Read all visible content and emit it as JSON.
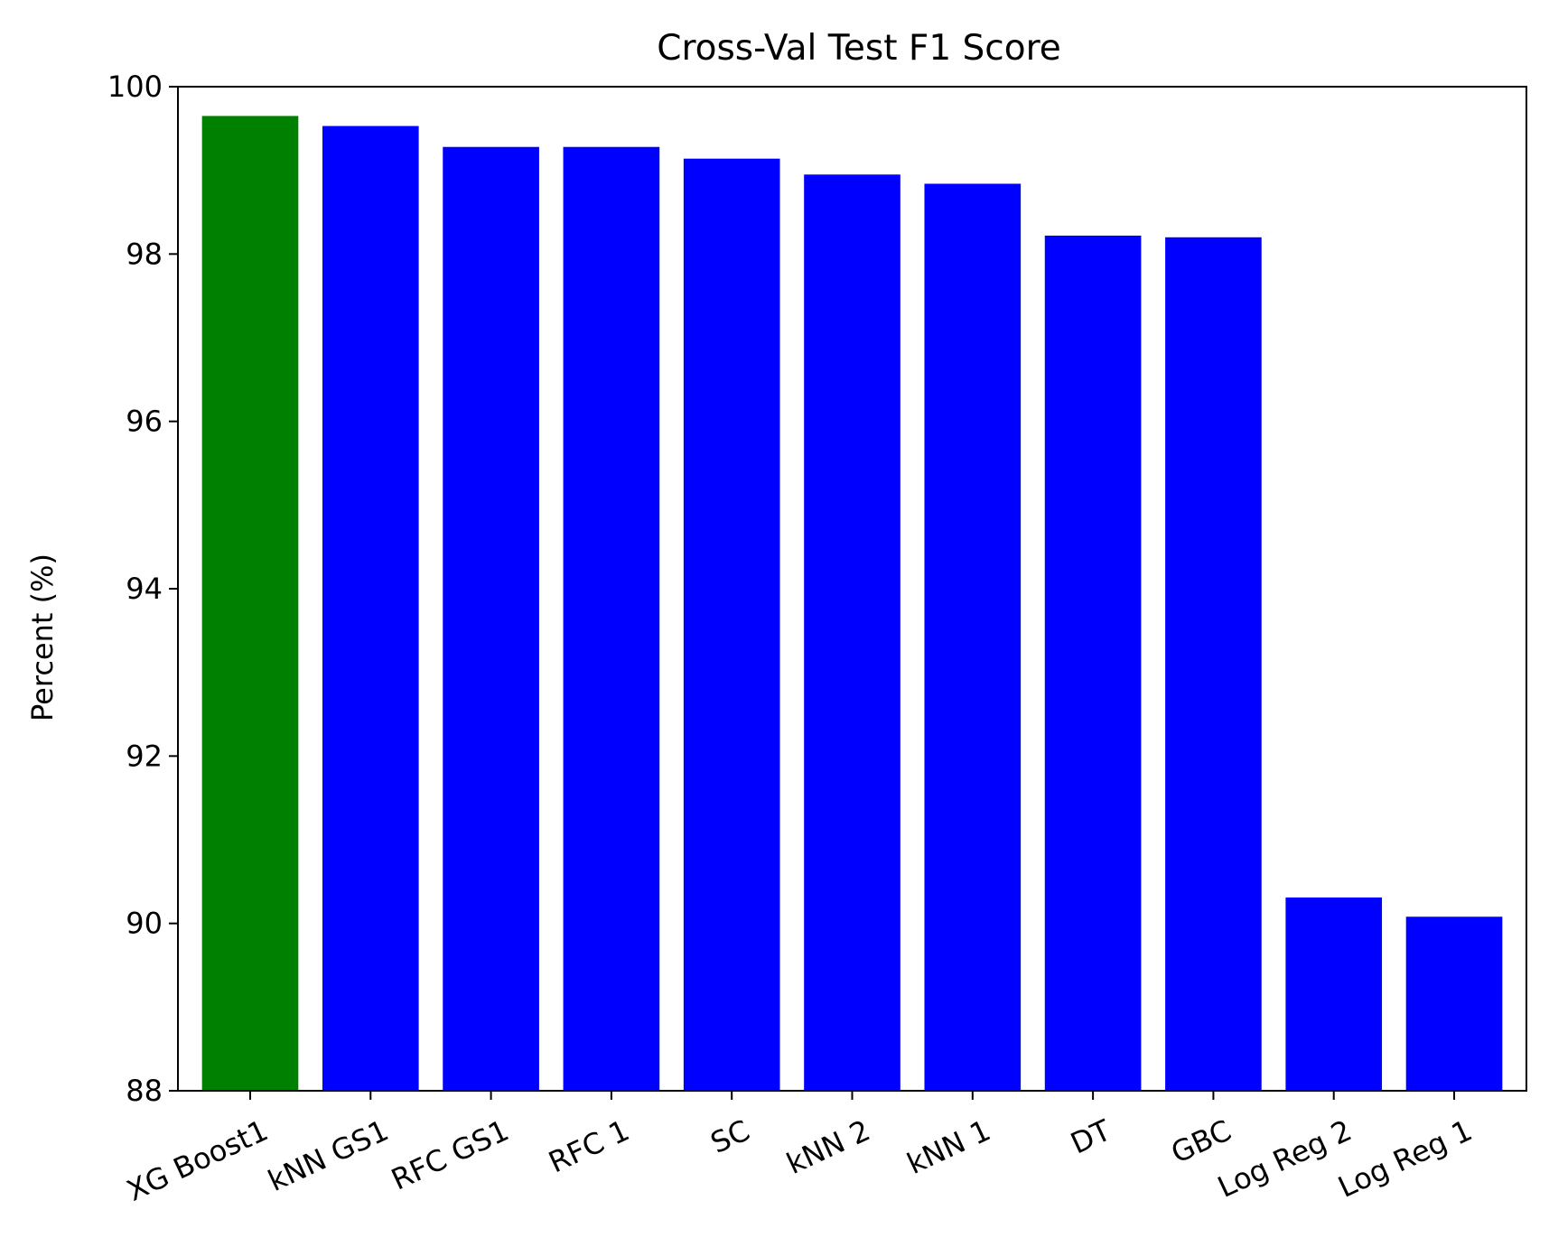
{
  "chart_data": {
    "type": "bar",
    "title": "Cross-Val Test F1 Score",
    "xlabel": "",
    "ylabel": "Percent (%)",
    "ylim": [
      88,
      100
    ],
    "yticks": [
      88,
      90,
      92,
      94,
      96,
      98,
      100
    ],
    "grid": false,
    "categories": [
      "XG Boost1",
      "kNN GS1",
      "RFC GS1",
      "RFC 1",
      "SC",
      "kNN 2",
      "kNN 1",
      "DT",
      "GBC",
      "Log Reg 2",
      "Log Reg 1"
    ],
    "values": [
      99.65,
      99.53,
      99.28,
      99.28,
      99.14,
      98.95,
      98.84,
      98.22,
      98.2,
      90.31,
      90.08
    ],
    "colors": [
      "#008000",
      "#0000ff",
      "#0000ff",
      "#0000ff",
      "#0000ff",
      "#0000ff",
      "#0000ff",
      "#0000ff",
      "#0000ff",
      "#0000ff",
      "#0000ff"
    ],
    "xtick_rotation": 25
  }
}
